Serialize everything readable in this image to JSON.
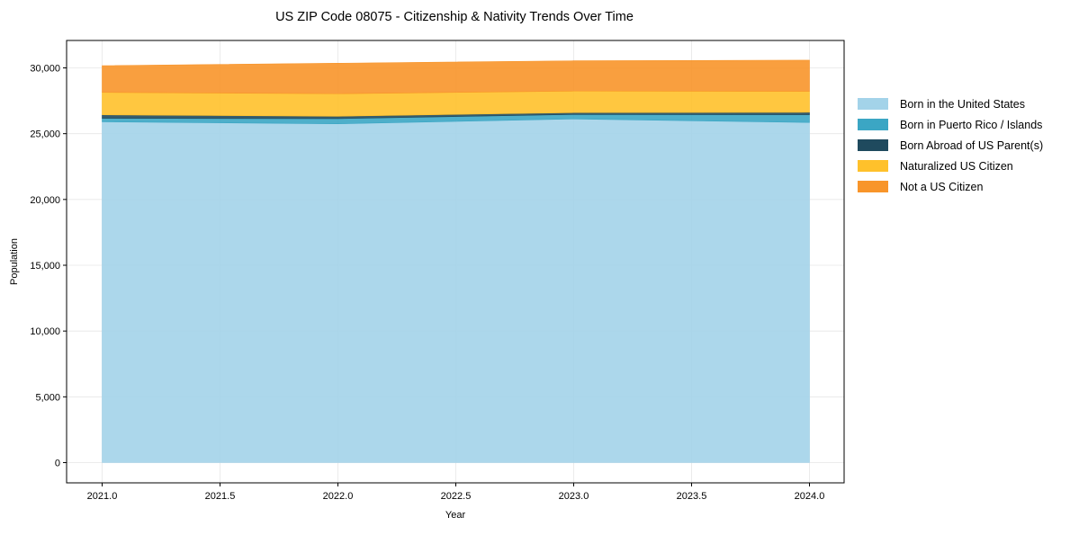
{
  "chart_data": {
    "type": "area",
    "stacked": true,
    "title": "US ZIP Code 08075 - Citizenship & Nativity Trends Over Time",
    "xlabel": "Year",
    "ylabel": "Population",
    "x": [
      2021,
      2022,
      2023,
      2024
    ],
    "xlim": [
      2020.85,
      2024.15
    ],
    "ylim": [
      -1600,
      32200
    ],
    "xticks": [
      2021.0,
      2021.5,
      2022.0,
      2022.5,
      2023.0,
      2023.5,
      2024.0
    ],
    "xtick_labels": [
      "2021.0",
      "2021.5",
      "2022.0",
      "2022.5",
      "2023.0",
      "2023.5",
      "2024.0"
    ],
    "yticks": [
      0,
      5000,
      10000,
      15000,
      20000,
      25000,
      30000
    ],
    "ytick_labels": [
      "0",
      "5,000",
      "10,000",
      "15,000",
      "20,000",
      "25,000",
      "30,000"
    ],
    "grid": true,
    "legend_position": "right, outside plot",
    "series": [
      {
        "name": "Born in the United States",
        "color": "#A3D3E9",
        "values": [
          25900,
          25750,
          26120,
          25850
        ]
      },
      {
        "name": "Born in Puerto Rico / Islands",
        "color": "#3BA6C4",
        "values": [
          270,
          390,
          340,
          590
        ]
      },
      {
        "name": "Born Abroad of US Parent(s)",
        "color": "#1F4A5E",
        "values": [
          260,
          185,
          140,
          185
        ]
      },
      {
        "name": "Naturalized US Citizen",
        "color": "#FFC12B",
        "values": [
          1710,
          1710,
          1640,
          1590
        ]
      },
      {
        "name": "Not a US Citizen",
        "color": "#F8952A",
        "values": [
          2030,
          2320,
          2300,
          2370
        ]
      }
    ]
  }
}
